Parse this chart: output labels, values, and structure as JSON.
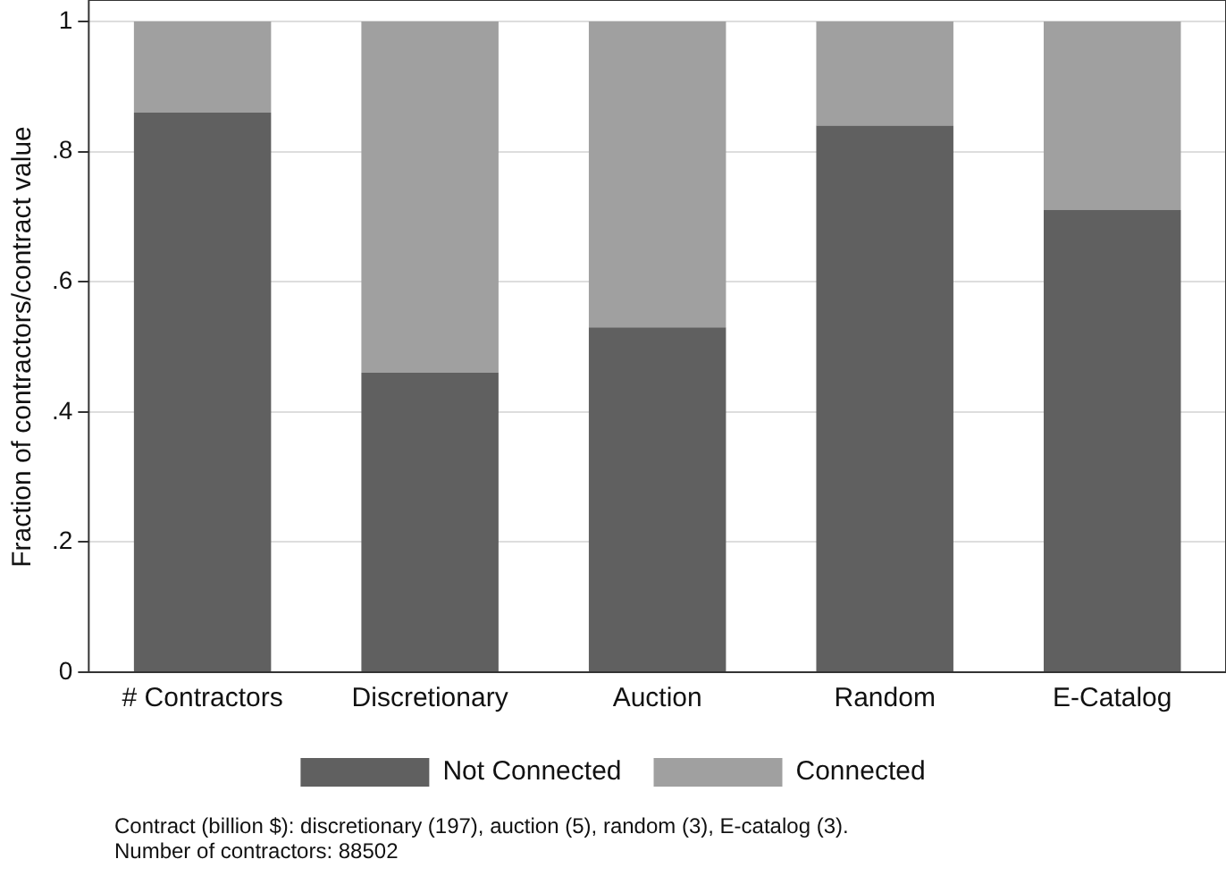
{
  "chart_data": {
    "type": "bar",
    "stacked": true,
    "ylabel": "Fraction of contractors/contract value",
    "categories": [
      "# Contractors",
      "Discretionary",
      "Auction",
      "Random",
      "E-Catalog"
    ],
    "series": [
      {
        "name": "Not Connected",
        "color": "#606060",
        "values": [
          0.86,
          0.46,
          0.53,
          0.84,
          0.71
        ]
      },
      {
        "name": "Connected",
        "color": "#a0a0a0",
        "values": [
          0.14,
          0.54,
          0.47,
          0.16,
          0.29
        ]
      }
    ],
    "ylim": [
      0,
      1
    ],
    "yticks": [
      0,
      {
        "value": 0.2,
        "label": ".2"
      },
      {
        "value": 0.4,
        "label": ".4"
      },
      {
        "value": 0.6,
        "label": ".6"
      },
      {
        "value": 0.8,
        "label": ".8"
      },
      1
    ],
    "grid": "y",
    "legend": "bottom",
    "annotations": [
      "Contract (billion $): discretionary (197), auction (5), random (3), E-catalog (3).",
      "Number of contractors: 88502"
    ]
  }
}
